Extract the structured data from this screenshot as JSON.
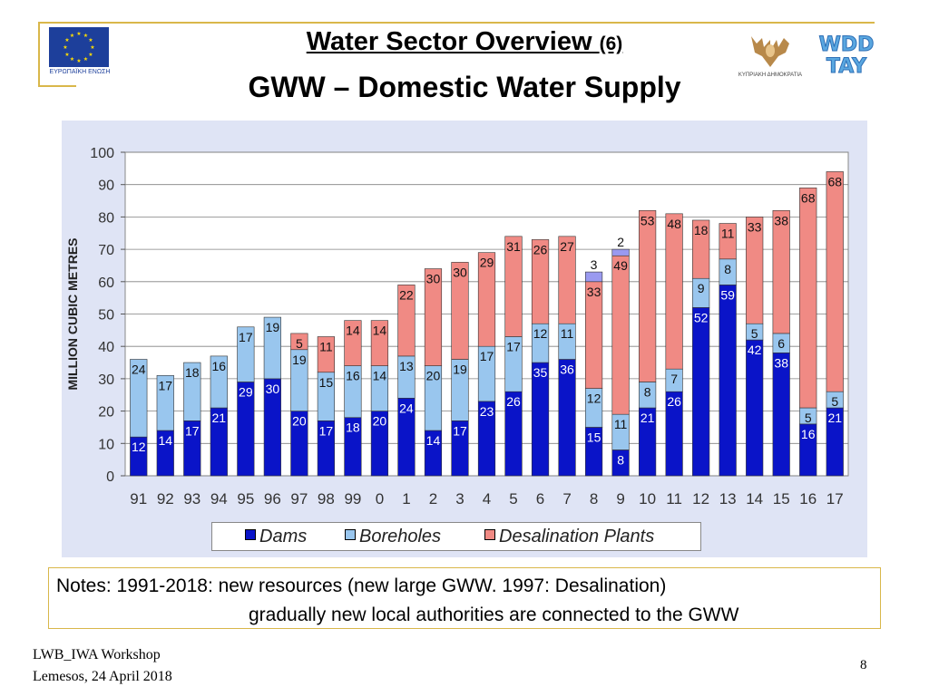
{
  "header": {
    "title_main": "Water Sector Overview",
    "title_number": "(6)",
    "subtitle": "GWW – Domestic Water Supply",
    "eu_logo_text": "ΕΥΡΩΠΑΪΚΗ ΕΝΩΣΗ",
    "cy_logo_text": "ΚΥΠΡΙΑΚΗ ΔΗΜΟΚΡΑΤΙΑ",
    "wdd_logo_text_top": "WDD",
    "wdd_logo_text_bottom": "TAY"
  },
  "notes": {
    "line1": "Notes: 1991-2018: new resources (new large GWW. 1997: Desalination)",
    "line2": "gradually new local authorities are connected to the GWW"
  },
  "footer": {
    "line1": "LWB_IWA Workshop",
    "line2": "Lemesos, 24 April 2018",
    "page_number": "8"
  },
  "colors": {
    "dams": "#0a14c8",
    "boreholes": "#99c6ee",
    "desalination": "#f08a84",
    "other": "#9a9af0",
    "panel": "#dfe4f5",
    "plot_bg": "#ffffff"
  },
  "chart_data": {
    "type": "bar",
    "stacked": true,
    "title": "",
    "xlabel": "",
    "ylabel": "MILLION CUBIC METRES",
    "ylim": [
      0,
      100
    ],
    "yticks": [
      0,
      10,
      20,
      30,
      40,
      50,
      60,
      70,
      80,
      90,
      100
    ],
    "grid": true,
    "legend_position": "bottom",
    "categories": [
      "91",
      "92",
      "93",
      "94",
      "95",
      "96",
      "97",
      "98",
      "99",
      "0",
      "1",
      "2",
      "3",
      "4",
      "5",
      "6",
      "7",
      "8",
      "9",
      "10",
      "11",
      "12",
      "13",
      "14",
      "15",
      "16",
      "17"
    ],
    "series": [
      {
        "name": "Dams",
        "values": [
          12,
          14,
          17,
          21,
          29,
          30,
          20,
          17,
          18,
          20,
          24,
          14,
          17,
          23,
          26,
          35,
          36,
          15,
          8,
          21,
          26,
          52,
          59,
          42,
          38,
          16,
          21
        ],
        "labels": [
          "12",
          "14",
          "17",
          "21",
          "29",
          "30",
          "20",
          "17",
          "18",
          "20",
          "24",
          "14",
          "17",
          "23",
          "26",
          "35",
          "36",
          "15",
          "8",
          "21",
          "26",
          "52",
          "59",
          "42",
          "38",
          "16",
          "21"
        ]
      },
      {
        "name": "Boreholes",
        "values": [
          24,
          17,
          18,
          16,
          17,
          19,
          19,
          15,
          16,
          14,
          13,
          20,
          19,
          17,
          17,
          12,
          11,
          12,
          11,
          8,
          7,
          9,
          8,
          5,
          6,
          5,
          5
        ],
        "labels": [
          "24",
          "17",
          "18",
          "16",
          "17",
          "19",
          "19",
          "15",
          "16",
          "14",
          "13",
          "20",
          "19",
          "17",
          "17",
          "12",
          "11",
          "12",
          "11",
          "8",
          "7",
          "9",
          "8",
          "5",
          "6",
          "5",
          "5"
        ]
      },
      {
        "name": "Desalination Plants",
        "values": [
          0,
          0,
          0,
          0,
          0,
          0,
          5,
          11,
          14,
          14,
          22,
          30,
          30,
          29,
          31,
          26,
          27,
          33,
          49,
          53,
          48,
          18,
          11,
          33,
          38,
          68,
          68
        ],
        "labels": [
          "",
          "",
          "",
          "",
          "",
          "",
          "5",
          "11",
          "14",
          "14",
          "22",
          "30",
          "30",
          "29",
          "31",
          "26",
          "27",
          "33",
          "49",
          "53",
          "48",
          "18",
          "11",
          "33",
          "38",
          "68",
          "68"
        ]
      },
      {
        "name": "Other",
        "values": [
          0,
          0,
          0,
          0,
          0,
          0,
          0,
          0,
          0,
          0,
          0,
          0,
          0,
          0,
          0,
          0,
          0,
          3,
          2,
          0,
          0,
          0,
          0,
          0,
          0,
          0,
          0
        ],
        "labels": [
          "",
          "",
          "",
          "",
          "",
          "",
          "",
          "",
          "",
          "",
          "",
          "",
          "",
          "",
          "",
          "",
          "",
          "3",
          "2",
          "",
          "",
          "",
          "",
          "",
          "",
          "",
          ""
        ]
      }
    ],
    "legend_entries": [
      "Dams",
      "Boreholes",
      "Desalination Plants"
    ]
  }
}
